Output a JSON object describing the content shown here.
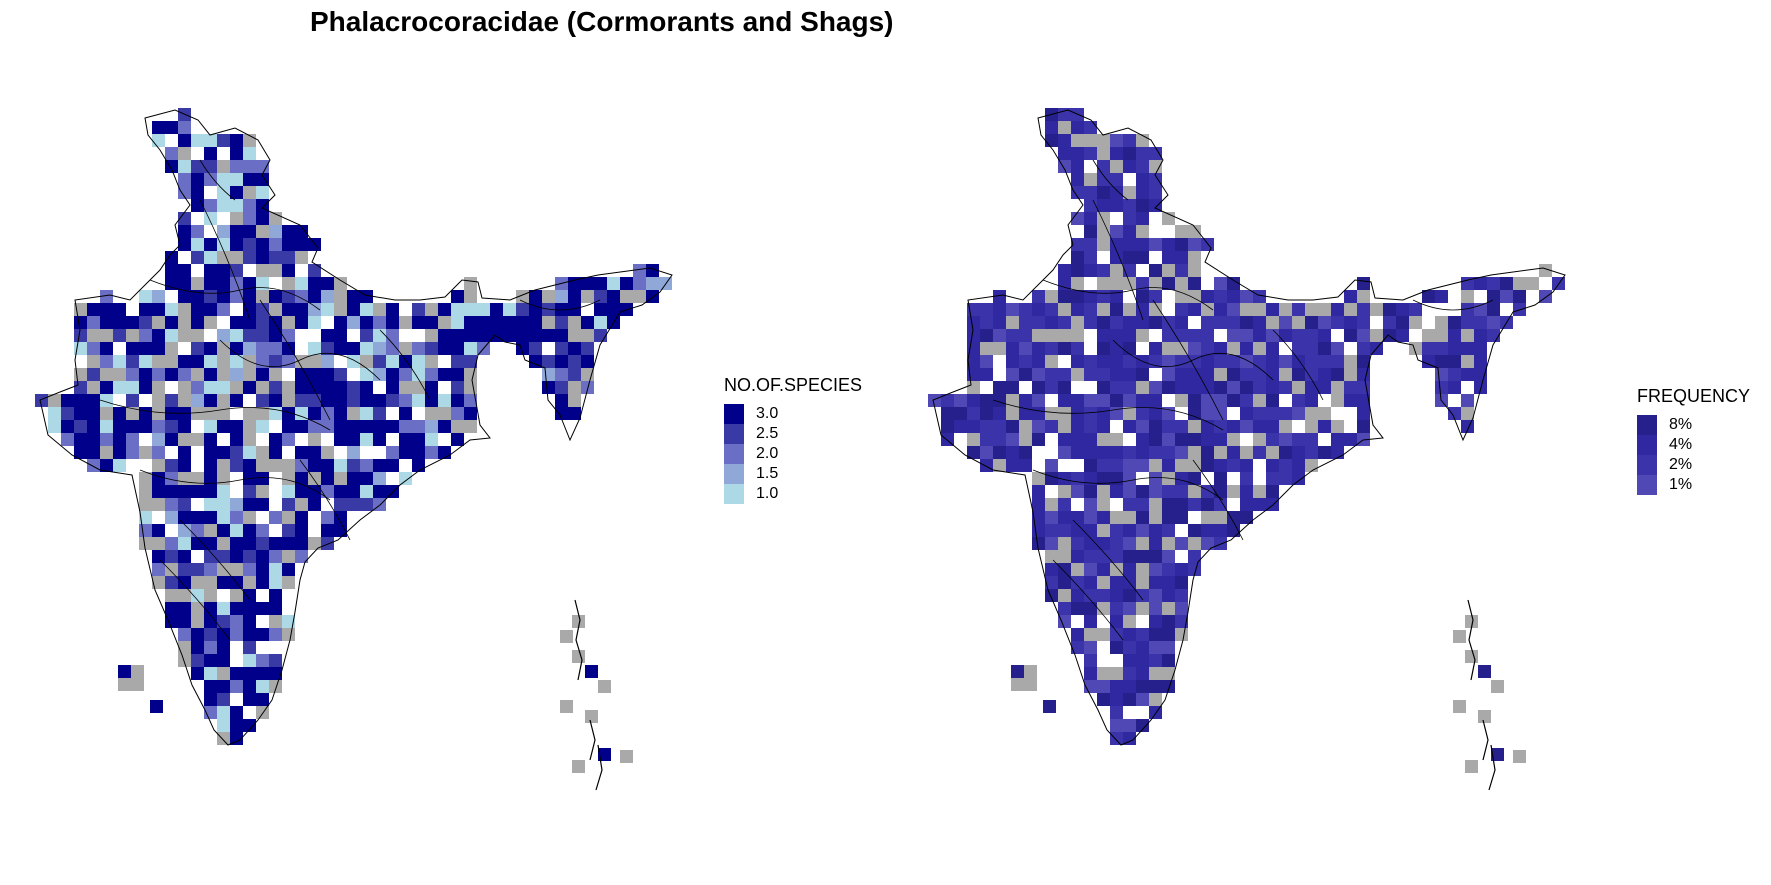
{
  "title": "Phalacrocoracidae (Cormorants and Shags)",
  "maps": {
    "species": {
      "legend_title": "NO.OF.SPECIES",
      "legend": [
        {
          "label": "3.0",
          "color": "#00008b"
        },
        {
          "label": "2.5",
          "color": "#3a3aa6"
        },
        {
          "label": "2.0",
          "color": "#6a6ec4"
        },
        {
          "label": "1.5",
          "color": "#8fa8d8"
        },
        {
          "label": "1.0",
          "color": "#add8e6"
        }
      ],
      "no_data_color": "#a9a9a9"
    },
    "frequency": {
      "legend_title": "FREQUENCY",
      "legend": [
        {
          "label": "8%",
          "color": "#25208c"
        },
        {
          "label": "4%",
          "color": "#2f28a0"
        },
        {
          "label": "2%",
          "color": "#3a33aa"
        },
        {
          "label": "1%",
          "color": "#5048b4"
        }
      ],
      "no_data_color": "#a9a9a9"
    }
  }
}
